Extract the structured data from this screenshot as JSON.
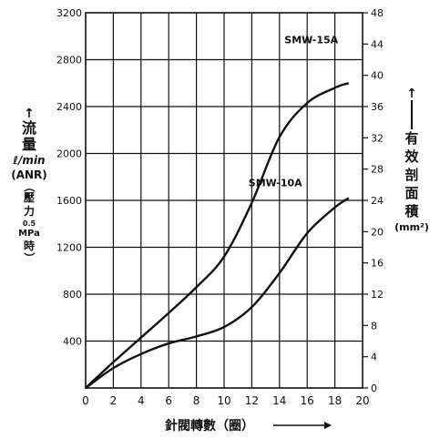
{
  "chart_data": {
    "type": "line",
    "x": [
      0,
      2,
      4,
      6,
      8,
      10,
      12,
      14,
      16,
      18,
      19
    ],
    "series": [
      {
        "name": "SMW-15A",
        "values": [
          0,
          220,
          430,
          640,
          860,
          1120,
          1580,
          2140,
          2430,
          2560,
          2600
        ]
      },
      {
        "name": "SMW-10A",
        "values": [
          0,
          170,
          290,
          380,
          440,
          520,
          690,
          980,
          1320,
          1540,
          1620
        ]
      }
    ],
    "xlabel_text": "針閥轉數（圈）",
    "x_ticks": [
      "0",
      "2",
      "4",
      "6",
      "8",
      "10",
      "12",
      "14",
      "16",
      "18",
      "20"
    ],
    "xlim": [
      0,
      20
    ],
    "y_ticks": [
      "400",
      "800",
      "1200",
      "1600",
      "2000",
      "2400",
      "2800",
      "3200"
    ],
    "y_tick_values": [
      400,
      800,
      1200,
      1600,
      2000,
      2400,
      2800,
      3200
    ],
    "ylim": [
      0,
      3200
    ],
    "y2_ticks": [
      "0",
      "4",
      "8",
      "12",
      "16",
      "20",
      "24",
      "28",
      "32",
      "36",
      "40",
      "44",
      "48"
    ],
    "y2_tick_values": [
      0,
      4,
      8,
      12,
      16,
      20,
      24,
      28,
      32,
      36,
      40,
      44,
      48
    ],
    "y2lim": [
      0,
      48
    ],
    "grid": true,
    "left_label": {
      "line1": "流",
      "line2": "量",
      "unit": "ℓ/min",
      "unit2": "(ANR)",
      "paren_open": "（",
      "cond1": "壓",
      "cond2": "力",
      "pressure_value": "0.5",
      "pressure_unit": "MPa",
      "cond3": "時",
      "paren_close": "）"
    },
    "right_label": {
      "chars": [
        "有",
        "效",
        "剖",
        "面",
        "積"
      ],
      "unit": "(mm²)"
    }
  }
}
